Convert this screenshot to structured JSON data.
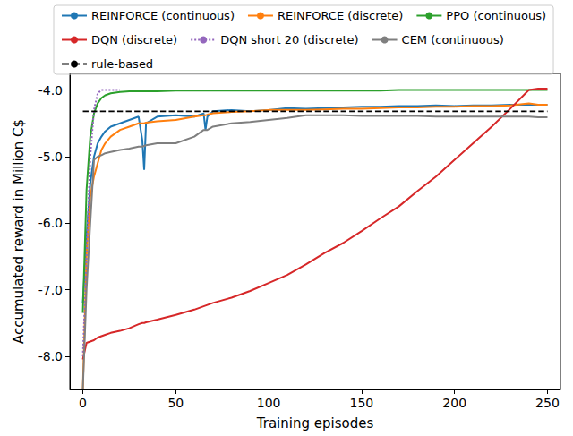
{
  "chart_data": {
    "type": "line",
    "x_label": "Training episodes",
    "y_label": "Accumulated reward in Million C$",
    "x": [
      0,
      2,
      4,
      6,
      8,
      10,
      12,
      15,
      20,
      25,
      30,
      32,
      33,
      34,
      40,
      50,
      60,
      65,
      66,
      67,
      70,
      80,
      90,
      100,
      110,
      120,
      130,
      140,
      150,
      160,
      170,
      180,
      190,
      200,
      210,
      220,
      230,
      240,
      245,
      250
    ],
    "series": [
      {
        "name": "REINFORCE (continuous)",
        "color": "#1f77b4",
        "line_style": "solid",
        "values": [
          -7.2,
          -6.2,
          -5.4,
          -5.0,
          -4.8,
          -4.7,
          -4.62,
          -4.55,
          -4.5,
          -4.45,
          -4.4,
          -4.75,
          -5.2,
          -4.5,
          -4.4,
          -4.38,
          -4.4,
          -4.35,
          -4.6,
          -4.4,
          -4.32,
          -4.3,
          -4.32,
          -4.3,
          -4.27,
          -4.28,
          -4.27,
          -4.26,
          -4.25,
          -4.25,
          -4.24,
          -4.24,
          -4.23,
          -4.24,
          -4.23,
          -4.23,
          -4.22,
          -4.22,
          -4.22,
          -4.22
        ]
      },
      {
        "name": "REINFORCE (discrete)",
        "color": "#ff7f0e",
        "line_style": "solid",
        "values": [
          -8.5,
          -6.5,
          -5.6,
          -5.3,
          -5.1,
          -4.9,
          -4.8,
          -4.7,
          -4.6,
          -4.55,
          -4.5,
          -4.5,
          -4.5,
          -4.49,
          -4.47,
          -4.45,
          -4.4,
          -4.38,
          -4.38,
          -4.37,
          -4.35,
          -4.33,
          -4.32,
          -4.3,
          -4.3,
          -4.3,
          -4.29,
          -4.28,
          -4.28,
          -4.27,
          -4.26,
          -4.26,
          -4.25,
          -4.25,
          -4.24,
          -4.24,
          -4.23,
          -4.2,
          -4.22,
          -4.22
        ]
      },
      {
        "name": "PPO (continuous)",
        "color": "#2ca02c",
        "line_style": "solid",
        "values": [
          -7.35,
          -5.5,
          -4.7,
          -4.35,
          -4.2,
          -4.12,
          -4.08,
          -4.05,
          -4.03,
          -4.02,
          -4.02,
          -4.02,
          -4.02,
          -4.02,
          -4.02,
          -4.01,
          -4.01,
          -4.01,
          -4.01,
          -4.01,
          -4.01,
          -4.01,
          -4.01,
          -4.01,
          -4.01,
          -4.01,
          -4.01,
          -4.01,
          -4.01,
          -4.01,
          -4.0,
          -4.0,
          -4.0,
          -4.0,
          -4.0,
          -4.0,
          -4.0,
          -4.0,
          -4.0,
          -4.0
        ]
      },
      {
        "name": "DQN (discrete)",
        "color": "#d62728",
        "line_style": "solid",
        "values": [
          -8.05,
          -7.8,
          -7.78,
          -7.76,
          -7.72,
          -7.7,
          -7.68,
          -7.65,
          -7.62,
          -7.58,
          -7.52,
          -7.5,
          -7.5,
          -7.49,
          -7.45,
          -7.38,
          -7.3,
          -7.25,
          -7.24,
          -7.23,
          -7.2,
          -7.12,
          -7.02,
          -6.9,
          -6.78,
          -6.62,
          -6.45,
          -6.3,
          -6.12,
          -5.93,
          -5.75,
          -5.52,
          -5.3,
          -5.05,
          -4.8,
          -4.55,
          -4.28,
          -4.0,
          -3.98,
          -3.98
        ]
      },
      {
        "name": "DQN short 20 (discrete)",
        "color": "#9467bd",
        "line_style": "dotted",
        "values": [
          -8.0,
          -6.5,
          -5.0,
          -4.3,
          -4.05,
          -4.0,
          -4.0,
          -4.0,
          -4.0,
          null,
          null,
          null,
          null,
          null,
          null,
          null,
          null,
          null,
          null,
          null,
          null,
          null,
          null,
          null,
          null,
          null,
          null,
          null,
          null,
          null,
          null,
          null,
          null,
          null,
          null,
          null,
          null,
          null,
          null,
          null
        ]
      },
      {
        "name": "CEM (continuous)",
        "color": "#7f7f7f",
        "line_style": "solid",
        "values": [
          -8.5,
          -7.0,
          -6.0,
          -5.05,
          -5.0,
          -4.98,
          -4.95,
          -4.93,
          -4.9,
          -4.88,
          -4.85,
          -4.85,
          -4.84,
          -4.83,
          -4.8,
          -4.8,
          -4.7,
          -4.6,
          -4.6,
          -4.6,
          -4.55,
          -4.5,
          -4.48,
          -4.45,
          -4.42,
          -4.38,
          -4.38,
          -4.38,
          -4.39,
          -4.39,
          -4.39,
          -4.39,
          -4.4,
          -4.4,
          -4.4,
          -4.4,
          -4.4,
          -4.4,
          -4.41,
          -4.41
        ]
      },
      {
        "name": "rule-based",
        "color": "#000000",
        "line_style": "dashed",
        "values": [
          -4.32,
          -4.32,
          -4.32,
          -4.32,
          -4.32,
          -4.32,
          -4.32,
          -4.32,
          -4.32,
          -4.32,
          -4.32,
          -4.32,
          -4.32,
          -4.32,
          -4.32,
          -4.32,
          -4.32,
          -4.32,
          -4.32,
          -4.32,
          -4.32,
          -4.32,
          -4.32,
          -4.32,
          -4.32,
          -4.32,
          -4.32,
          -4.32,
          -4.32,
          -4.32,
          -4.32,
          -4.32,
          -4.32,
          -4.32,
          -4.32,
          -4.32,
          -4.32,
          -4.32,
          -4.32,
          -4.32
        ]
      }
    ],
    "xlim": [
      -7,
      257
    ],
    "xticks": [
      0,
      50,
      100,
      150,
      200,
      250
    ],
    "ylim": [
      -8.5,
      -3.75
    ],
    "yticks": [
      {
        "value": -8,
        "label": "-8.0"
      },
      {
        "value": -7,
        "label": "-7.0"
      },
      {
        "value": -6,
        "label": "-6.0"
      },
      {
        "value": -5,
        "label": "-5.0"
      },
      {
        "value": -4,
        "label": "-4.0"
      }
    ],
    "grid": false,
    "legend": "top"
  }
}
